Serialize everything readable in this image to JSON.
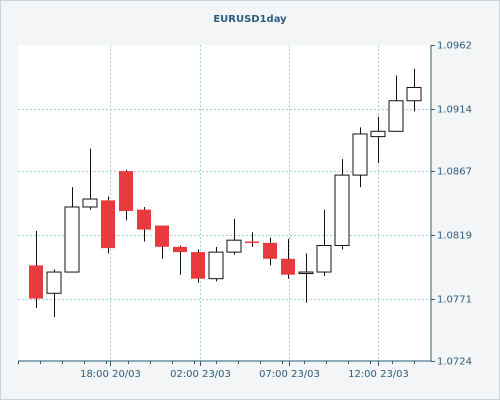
{
  "chart_data": {
    "type": "candlestick",
    "title": "EURUSD1day",
    "ylim": [
      1.0724,
      1.0962
    ],
    "y_ticks": [
      "1.0962",
      "1.0914",
      "1.0867",
      "1.0819",
      "1.0771",
      "1.0724"
    ],
    "x_ticks": [
      "18:00 20/03",
      "02:00 23/03",
      "07:00 23/03",
      "12:00 23/03"
    ],
    "grid": true,
    "colors": {
      "up_fill": "#ffffff",
      "down_fill": "#e8393d",
      "wick": "#111111",
      "grid": "#9fd3dc",
      "plot_bg": "#ffffff",
      "axis": "#2f5d7c"
    },
    "candles": [
      {
        "open": 1.0796,
        "high": 1.0822,
        "low": 1.0764,
        "close": 1.0771
      },
      {
        "open": 1.0775,
        "high": 1.0793,
        "low": 1.0757,
        "close": 1.0791
      },
      {
        "open": 1.0791,
        "high": 1.0855,
        "low": 1.0791,
        "close": 1.084
      },
      {
        "open": 1.084,
        "high": 1.0884,
        "low": 1.0838,
        "close": 1.0846
      },
      {
        "open": 1.0845,
        "high": 1.0848,
        "low": 1.0805,
        "close": 1.0809
      },
      {
        "open": 1.0867,
        "high": 1.0868,
        "low": 1.083,
        "close": 1.0837
      },
      {
        "open": 1.0838,
        "high": 1.084,
        "low": 1.0814,
        "close": 1.0823
      },
      {
        "open": 1.0826,
        "high": 1.0826,
        "low": 1.0801,
        "close": 1.081
      },
      {
        "open": 1.081,
        "high": 1.0811,
        "low": 1.0789,
        "close": 1.0806
      },
      {
        "open": 1.0806,
        "high": 1.0808,
        "low": 1.0783,
        "close": 1.0786
      },
      {
        "open": 1.0786,
        "high": 1.081,
        "low": 1.0784,
        "close": 1.0806
      },
      {
        "open": 1.0806,
        "high": 1.0831,
        "low": 1.0804,
        "close": 1.0815
      },
      {
        "open": 1.0814,
        "high": 1.0821,
        "low": 1.081,
        "close": 1.0813
      },
      {
        "open": 1.0813,
        "high": 1.0817,
        "low": 1.0796,
        "close": 1.0801
      },
      {
        "open": 1.0801,
        "high": 1.0816,
        "low": 1.0786,
        "close": 1.0789
      },
      {
        "open": 1.079,
        "high": 1.0805,
        "low": 1.0768,
        "close": 1.0791
      },
      {
        "open": 1.0791,
        "high": 1.0838,
        "low": 1.0788,
        "close": 1.0811
      },
      {
        "open": 1.0811,
        "high": 1.0876,
        "low": 1.0808,
        "close": 1.0864
      },
      {
        "open": 1.0864,
        "high": 1.09,
        "low": 1.0855,
        "close": 1.0895
      },
      {
        "open": 1.0893,
        "high": 1.0908,
        "low": 1.0873,
        "close": 1.0897
      },
      {
        "open": 1.0897,
        "high": 1.0939,
        "low": 1.0897,
        "close": 1.092
      },
      {
        "open": 1.092,
        "high": 1.0944,
        "low": 1.0912,
        "close": 1.093
      }
    ]
  }
}
